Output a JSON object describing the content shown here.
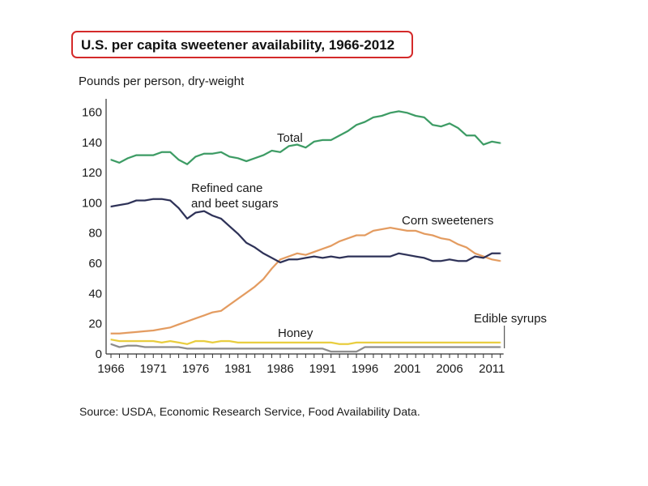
{
  "title": "U.S. per capita sweetener availability, 1966-2012",
  "source": "Source: USDA, Economic Research Service, Food Availability Data.",
  "chart_data": {
    "type": "line",
    "title": "U.S. per capita sweetener availability, 1966-2012",
    "ylabel": "Pounds per person, dry-weight",
    "xlabel": "",
    "xlim": [
      1966,
      2012
    ],
    "ylim": [
      0,
      165
    ],
    "yticks": [
      0,
      20,
      40,
      60,
      80,
      100,
      120,
      140,
      160
    ],
    "xtick_labels": [
      "1966",
      "1971",
      "1976",
      "1981",
      "1986",
      "1991",
      "1996",
      "2001",
      "2006",
      "2011"
    ],
    "grid": false,
    "legend": "inline labels",
    "x": [
      1966,
      1967,
      1968,
      1969,
      1970,
      1971,
      1972,
      1973,
      1974,
      1975,
      1976,
      1977,
      1978,
      1979,
      1980,
      1981,
      1982,
      1983,
      1984,
      1985,
      1986,
      1987,
      1988,
      1989,
      1990,
      1991,
      1992,
      1993,
      1994,
      1995,
      1996,
      1997,
      1998,
      1999,
      2000,
      2001,
      2002,
      2003,
      2004,
      2005,
      2006,
      2007,
      2008,
      2009,
      2010,
      2011,
      2012
    ],
    "series": [
      {
        "name": "Total",
        "label": "Total",
        "color": "#3a9a62",
        "values": [
          128,
          126,
          129,
          131,
          131,
          131,
          133,
          133,
          128,
          125,
          130,
          132,
          132,
          133,
          130,
          129,
          127,
          129,
          131,
          134,
          133,
          137,
          138,
          136,
          140,
          141,
          141,
          144,
          147,
          151,
          153,
          156,
          157,
          159,
          160,
          159,
          157,
          156,
          151,
          150,
          152,
          149,
          144,
          144,
          138,
          140,
          139
        ]
      },
      {
        "name": "Refined cane and beet sugars",
        "label_lines": [
          "Refined cane",
          "and beet sugars"
        ],
        "color": "#2b2f55",
        "values": [
          97,
          98,
          99,
          101,
          101,
          102,
          102,
          101,
          96,
          89,
          93,
          94,
          91,
          89,
          84,
          79,
          73,
          70,
          66,
          63,
          60,
          62,
          62,
          63,
          64,
          63,
          64,
          63,
          64,
          64,
          64,
          64,
          64,
          64,
          66,
          65,
          64,
          63,
          61,
          61,
          62,
          61,
          61,
          64,
          63,
          66,
          66
        ]
      },
      {
        "name": "Corn sweeteners",
        "label": "Corn sweeteners",
        "color": "#e39a5e",
        "values": [
          13,
          13,
          13.5,
          14,
          14.5,
          15,
          16,
          17,
          19,
          21,
          23,
          25,
          27,
          28,
          32,
          36,
          40,
          44,
          49,
          56,
          62,
          64,
          66,
          65,
          67,
          69,
          71,
          74,
          76,
          78,
          78,
          81,
          82,
          83,
          82,
          81,
          81,
          79,
          78,
          76,
          75,
          72,
          70,
          66,
          64,
          62,
          61
        ]
      },
      {
        "name": "Honey",
        "label": "Honey",
        "color": "#e8cc3a",
        "values": [
          9,
          8,
          8,
          8,
          8,
          8,
          7,
          8,
          7,
          6,
          8,
          8,
          7,
          8,
          8,
          7,
          7,
          7,
          7,
          7,
          7,
          7,
          7,
          7,
          7,
          7,
          7,
          6,
          6,
          7,
          7,
          7,
          7,
          7,
          7,
          7,
          7,
          7,
          7,
          7,
          7,
          7,
          7,
          7,
          7,
          7,
          7
        ]
      },
      {
        "name": "Edible syrups",
        "label": "Edible syrups",
        "color": "#8a8a8a",
        "values": [
          6,
          4,
          5,
          5,
          4,
          4,
          4,
          4,
          4,
          3,
          3,
          3,
          3,
          3,
          3,
          3,
          3,
          3,
          3,
          3,
          3,
          3,
          3,
          3,
          3,
          3,
          1,
          1,
          1,
          1,
          4,
          4,
          4,
          4,
          4,
          4,
          4,
          4,
          4,
          4,
          4,
          4,
          4,
          4,
          4,
          4,
          4
        ]
      }
    ]
  }
}
